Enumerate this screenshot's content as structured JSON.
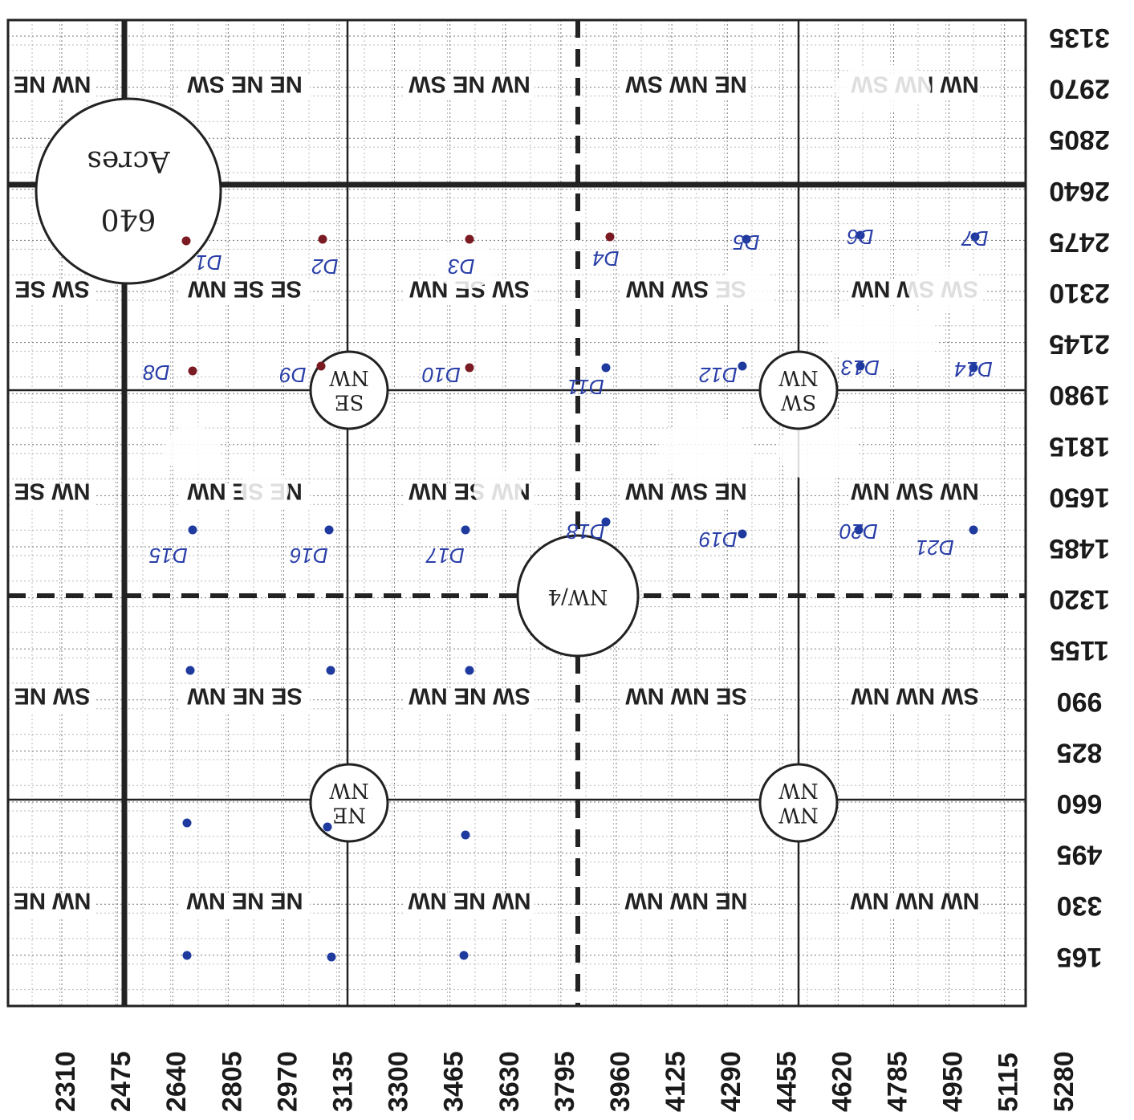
{
  "x_axis_labels": [
    "2310",
    "2475",
    "2640",
    "2805",
    "2970",
    "3135",
    "3300",
    "3465",
    "3630",
    "3795",
    "3960",
    "4125",
    "4290",
    "4455",
    "4620",
    "4785",
    "4950",
    "5115",
    "5280"
  ],
  "y_axis_labels": [
    "3135",
    "2970",
    "2805",
    "2640",
    "2475",
    "2310",
    "2145",
    "1980",
    "1815",
    "1650",
    "1485",
    "1320",
    "1155",
    "990",
    "825",
    "660",
    "495",
    "330",
    "165"
  ],
  "aliquot_rows": [
    [
      "NW NE",
      "NE NE SW",
      "NW NE SW",
      "NE NW SW",
      "NW NW SW"
    ],
    [
      "SW SE",
      "SE SE NW",
      "SW SE NW",
      "SE SW NW",
      "SW SW NW"
    ],
    [
      "NW SE",
      "NE SE NW",
      "NW SE NW",
      "NE SW NW",
      "NW SW NW"
    ],
    [
      "SW NE",
      "SE NE NW",
      "SW NE NW",
      "SE NW NW",
      "SW NW NW"
    ],
    [
      "NW NE",
      "NE NE NW",
      "NW NE NW",
      "NE NW NW",
      "NW NW NW"
    ]
  ],
  "circles": [
    {
      "name": "section",
      "line1": "640",
      "line2": "Acres"
    },
    {
      "name": "quarter",
      "line1": "NW/4"
    },
    {
      "name": "se-nw",
      "line1": "SE",
      "line2": "NW"
    },
    {
      "name": "sw-nw",
      "line1": "SW",
      "line2": "NW"
    },
    {
      "name": "ne-nw",
      "line1": "NE",
      "line2": "NW"
    },
    {
      "name": "nw-nw",
      "line1": "NW",
      "line2": "NW"
    }
  ],
  "well_labels": [
    "D1",
    "D2",
    "D3",
    "D4",
    "D5",
    "D6",
    "D7",
    "D8",
    "D9",
    "D10",
    "D11",
    "D12",
    "D13",
    "D14",
    "D15",
    "D16",
    "D17",
    "D18",
    "D19",
    "D20",
    "D21"
  ],
  "colors": {
    "ink": "#1e3a9e",
    "red_ink": "#7a1a22",
    "grid": "#222222"
  }
}
